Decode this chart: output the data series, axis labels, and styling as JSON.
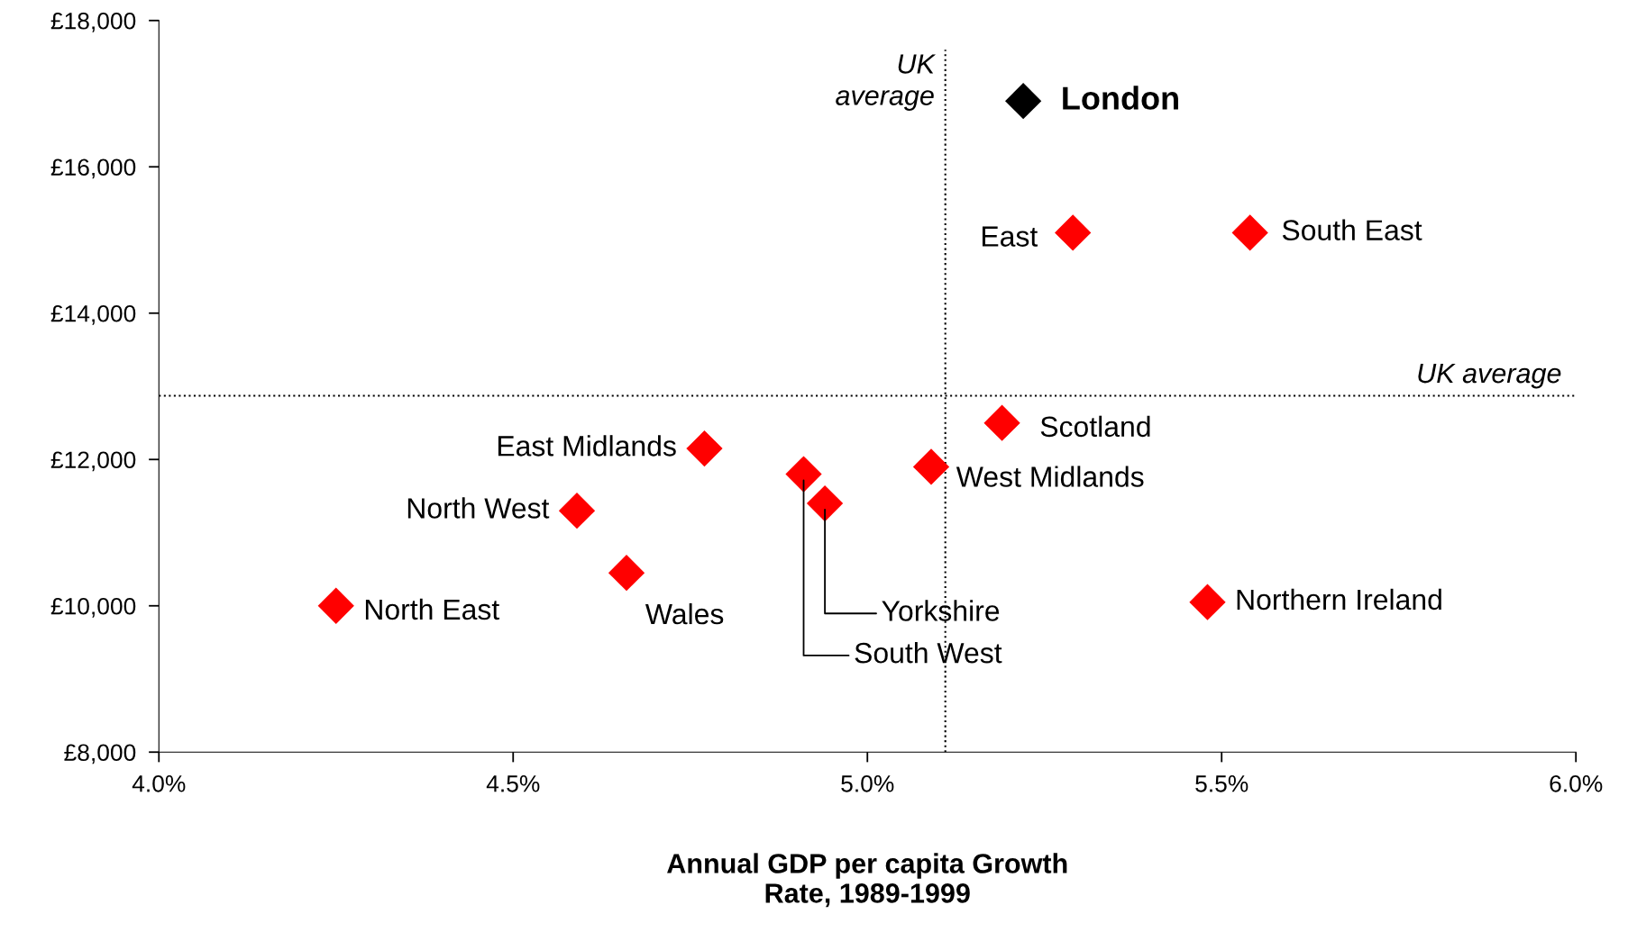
{
  "chart_data": {
    "type": "scatter",
    "xlabel": "Annual GDP per capita Growth\nRate, 1989-1999",
    "marker": "diamond",
    "grid": false,
    "series": [
      {
        "color": "#000000",
        "x": [
          5.22
        ],
        "values": [
          16900
        ]
      },
      {
        "color": "#ff0000",
        "x": [
          5.29,
          5.54,
          5.19,
          5.09,
          4.77,
          4.91,
          4.94,
          4.59,
          4.66,
          4.25,
          5.48
        ],
        "values": [
          15100,
          15100,
          12500,
          11900,
          12150,
          11800,
          11400,
          11300,
          10450,
          10000,
          10050
        ]
      }
    ],
    "annotations": [
      {
        "text": "London",
        "x": 5.22,
        "y": 16900
      },
      {
        "text": "East",
        "x": 5.29,
        "y": 15100
      },
      {
        "text": "South East",
        "x": 5.54,
        "y": 15100
      },
      {
        "text": "Scotland",
        "x": 5.19,
        "y": 12500
      },
      {
        "text": "West Midlands",
        "x": 5.09,
        "y": 11900
      },
      {
        "text": "East Midlands",
        "x": 4.77,
        "y": 12150
      },
      {
        "text": "South West",
        "x": 4.91,
        "y": 11800
      },
      {
        "text": "Yorkshire",
        "x": 4.94,
        "y": 11400
      },
      {
        "text": "North West",
        "x": 4.59,
        "y": 11300
      },
      {
        "text": "Wales",
        "x": 4.66,
        "y": 10450
      },
      {
        "text": "North East",
        "x": 4.25,
        "y": 10000
      },
      {
        "text": "Northern Ireland",
        "x": 5.48,
        "y": 10050
      }
    ],
    "ref_lines": [
      {
        "axis": "x",
        "value": 5.11,
        "label": "UK\naverage",
        "color": "#000000",
        "line_style": "dotted"
      },
      {
        "axis": "y",
        "value": 12870,
        "label": "UK average",
        "color": "#000000",
        "line_style": "dotted"
      }
    ],
    "xlim": [
      4.0,
      6.0
    ],
    "xticks": [
      {
        "value": 4.0,
        "label": "4.0%"
      },
      {
        "value": 4.5,
        "label": "4.5%"
      },
      {
        "value": 5.0,
        "label": "5.0%"
      },
      {
        "value": 5.5,
        "label": "5.5%"
      },
      {
        "value": 6.0,
        "label": "6.0%"
      }
    ],
    "ylim": [
      8000,
      18000
    ],
    "yticks": [
      {
        "value": 8000,
        "label": "£8,000"
      },
      {
        "value": 10000,
        "label": "£10,000"
      },
      {
        "value": 12000,
        "label": "£12,000"
      },
      {
        "value": 14000,
        "label": "£14,000"
      },
      {
        "value": 16000,
        "label": "£16,000"
      },
      {
        "value": 18000,
        "label": "£18,000"
      }
    ]
  }
}
